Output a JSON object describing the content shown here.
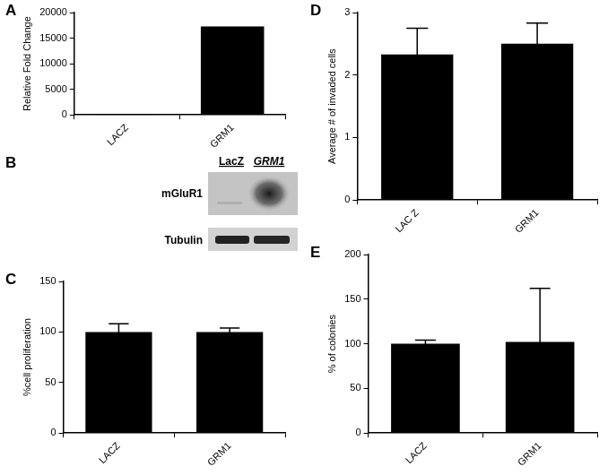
{
  "chart_data": [
    {
      "panel": "A",
      "type": "bar",
      "y_label": "Relative Fold Change",
      "categories": [
        "LACZ",
        "GRM1"
      ],
      "values": [
        1,
        17300
      ],
      "color": "#000000",
      "ylim": [
        0,
        20000
      ],
      "yticks": [
        0,
        5000,
        10000,
        15000,
        20000
      ],
      "grid": false
    },
    {
      "panel": "C",
      "type": "bar",
      "y_label": "%cell proliferation",
      "categories": [
        "LACZ",
        "GRM1"
      ],
      "values": [
        100,
        100
      ],
      "errors": [
        8,
        4
      ],
      "color": "#000000",
      "ylim": [
        0,
        150
      ],
      "yticks": [
        0,
        50,
        100,
        150
      ],
      "grid": false
    },
    {
      "panel": "D",
      "type": "bar",
      "y_label": "Average # of invaded cells",
      "categories": [
        "LAC Z",
        "GRM1"
      ],
      "values": [
        2.33,
        2.5
      ],
      "errors": [
        0.42,
        0.33
      ],
      "color": "#000000",
      "ylim": [
        0,
        3
      ],
      "yticks": [
        0,
        1,
        2,
        3
      ],
      "grid": false
    },
    {
      "panel": "E",
      "type": "bar",
      "y_label": "% of colonies",
      "categories": [
        "LACZ",
        "GRM1"
      ],
      "values": [
        100,
        102
      ],
      "errors": [
        4,
        60
      ],
      "color": "#000000",
      "ylim": [
        0,
        200
      ],
      "yticks": [
        0,
        50,
        100,
        150,
        200
      ],
      "grid": false
    }
  ],
  "blot": {
    "panel": "B",
    "lanes": [
      "LacZ",
      "GRM1"
    ],
    "rows": [
      "mGluR1",
      "Tubulin"
    ]
  }
}
